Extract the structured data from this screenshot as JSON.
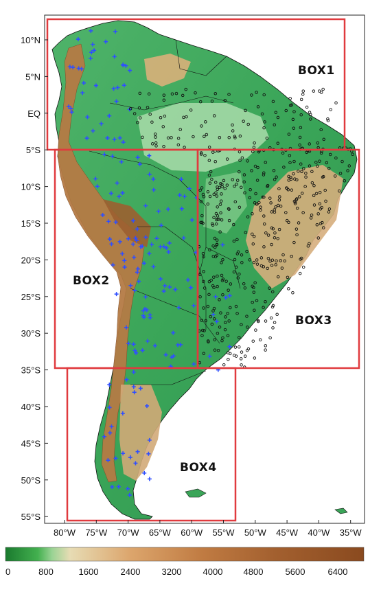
{
  "map": {
    "latitude_labels": [
      "10°N",
      "5°N",
      "EQ",
      "5°S",
      "10°S",
      "15°S",
      "20°S",
      "25°S",
      "30°S",
      "35°S",
      "40°S",
      "45°S",
      "50°S",
      "55°S"
    ],
    "longitude_labels": [
      "80°W",
      "75°W",
      "70°W",
      "65°W",
      "60°W",
      "55°W",
      "50°W",
      "45°W",
      "40°W",
      "35°W"
    ],
    "boxes": [
      {
        "label": "BOX1",
        "color": "#e03a3e"
      },
      {
        "label": "BOX2",
        "color": "#e03a3e"
      },
      {
        "label": "BOX3",
        "color": "#e03a3e"
      },
      {
        "label": "BOX4",
        "color": "#e03a3e"
      }
    ],
    "station_marker_colors": {
      "plus": "#2f4fff",
      "circle": "#111111"
    },
    "terrain_colors": [
      "#1a8a3a",
      "#3fb35a",
      "#8fd29a",
      "#c9e8c4",
      "#e6c89a",
      "#c9955c",
      "#a8703f",
      "#8a5330",
      "#6e3f22"
    ]
  },
  "legend": {
    "labels": [
      "0",
      "800",
      "1600",
      "2400",
      "3200",
      "4000",
      "4800",
      "5600",
      "6400"
    ],
    "gradient": [
      "#1a7a2e",
      "#43b04f",
      "#9ad394",
      "#e7dcb4",
      "#dca56c",
      "#c98145",
      "#b06a32",
      "#985b2a",
      "#8a4f22"
    ]
  }
}
